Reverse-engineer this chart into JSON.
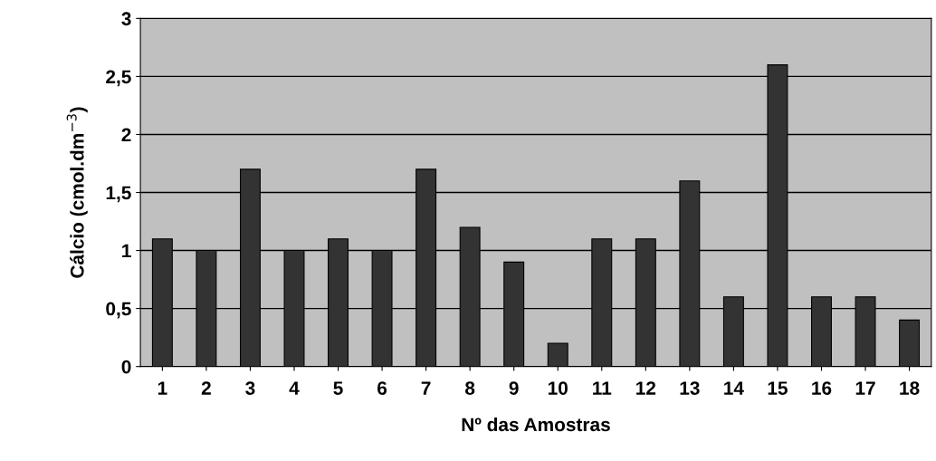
{
  "chart_data": {
    "type": "bar",
    "xlabel": "Nº das Amostras",
    "ylabel": "Cálcio (cmol.dm$^{−3}$)",
    "categories": [
      "1",
      "2",
      "3",
      "4",
      "5",
      "6",
      "7",
      "8",
      "9",
      "10",
      "11",
      "12",
      "13",
      "14",
      "15",
      "16",
      "17",
      "18"
    ],
    "values": [
      1.1,
      1.0,
      1.7,
      1.0,
      1.1,
      1.0,
      1.7,
      1.2,
      0.9,
      0.2,
      1.1,
      1.1,
      1.6,
      0.6,
      2.6,
      0.6,
      0.6,
      0.4
    ],
    "color": "#333333",
    "ylim": [
      0,
      3
    ],
    "yticks": [
      0,
      {
        "value": 0.5,
        "label": "0,5"
      },
      1,
      {
        "value": 1.5,
        "label": "1,5"
      },
      2,
      {
        "value": 2.5,
        "label": "2,5"
      },
      3
    ],
    "grid": "y"
  }
}
